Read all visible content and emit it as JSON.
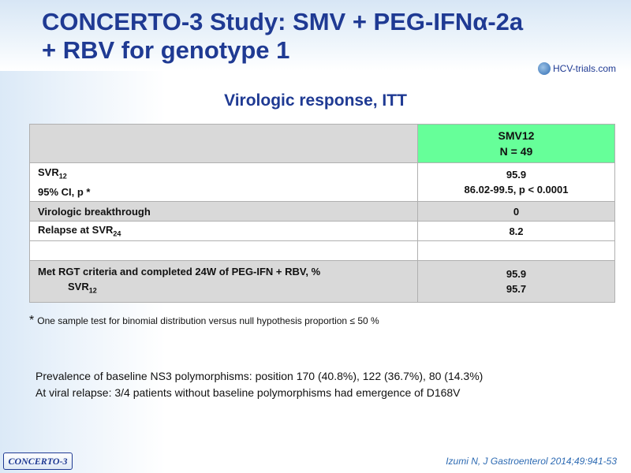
{
  "slide": {
    "title_line1": "CONCERTO-3 Study: SMV + PEG-IFNα-2a",
    "title_line2": "+ RBV for genotype 1",
    "logo_text": "HCV-trials.com",
    "subtitle": "Virologic response, ITT"
  },
  "table": {
    "header": {
      "arm": "SMV12",
      "n": "N = 49"
    },
    "svr12": {
      "label_main": "SVR",
      "label_sub": "12",
      "label2": "95% CI, p *",
      "value1": "95.9",
      "value2": "86.02-99.5, p < 0.0001"
    },
    "breakthrough": {
      "label": "Virologic breakthrough",
      "value": "0"
    },
    "relapse": {
      "label_main": "Relapse at SVR",
      "label_sub": "24",
      "value": "8.2"
    },
    "met_rgt": {
      "label": "Met RGT criteria and completed 24W of PEG-IFN + RBV, %",
      "sublabel_main": "SVR",
      "sublabel_sub": "12",
      "value1": "95.9",
      "value2": "95.7"
    }
  },
  "footnote": {
    "star": "*",
    "text": "One sample test for binomial distribution versus null hypothesis proportion ≤ 50 %"
  },
  "notes": {
    "line1": "Prevalence of baseline NS3 polymorphisms:  position 170 (40.8%), 122 (36.7%), 80 (14.3%)",
    "line2": "At viral relapse: 3/4 patients without baseline polymorphisms  had emergence of D168V"
  },
  "badge": "CONCERTO-3",
  "citation": "Izumi N, J Gastroenterol 2014;49:941-53"
}
